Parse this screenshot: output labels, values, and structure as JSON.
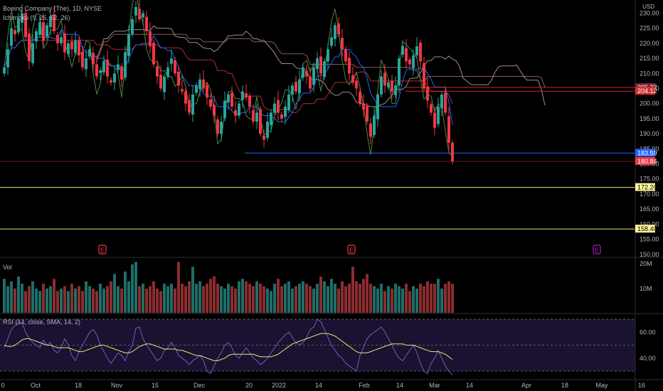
{
  "header": {
    "symbol": "Boeing Company (The), 1D, NYSE",
    "indicator": "Ichimoku (9, 26, 52, 26)",
    "currency": "USD"
  },
  "volume_pane": {
    "label": "Vol",
    "ticks": [
      "20M",
      "10M"
    ]
  },
  "rsi_pane": {
    "label": "RSI (14, close, SMA, 14, 2)",
    "ticks": [
      "60.00",
      "40.00"
    ]
  },
  "colors": {
    "up": "#26a69a",
    "down": "#f23645",
    "volume_up": "#1f6e68",
    "volume_down": "#8c2d30",
    "blue_line": "#2962ff",
    "yellow_line": "#e8e67a",
    "kumo_line": "#9e8e8e",
    "earnings": "#f23645",
    "earnings_future": "#9c27b0"
  },
  "earnings_markers": [
    {
      "label": "E",
      "date": "2021-10-27"
    },
    {
      "label": "E",
      "date": "2022-01-26"
    },
    {
      "label": "E",
      "date": "2022-04-27"
    }
  ],
  "chart_data": [
    {
      "type": "candlestick",
      "title": "Boeing Company (The), 1D, NYSE",
      "y_ticks": [
        150,
        155,
        160,
        165,
        170,
        175,
        180,
        185,
        190,
        195,
        200,
        205,
        210,
        215,
        220,
        225,
        230
      ],
      "ylim": [
        149,
        232
      ],
      "x_ticks": [
        "0",
        "Oct",
        "18",
        "Nov",
        "15",
        "Dec",
        "20",
        "2022",
        "14",
        "Feb",
        "14",
        "Mar",
        "14",
        "Apr",
        "18",
        "May",
        "16"
      ],
      "grid": false,
      "price_labels": [
        {
          "value": "205.37",
          "style": "ichimoku"
        },
        {
          "value": "204.12",
          "style": "red"
        },
        {
          "value": "183.59",
          "style": "blue"
        },
        {
          "value": "180.84",
          "style": "last"
        },
        {
          "value": "172.20",
          "style": "yellow"
        },
        {
          "value": "158.40",
          "style": "yellow"
        }
      ],
      "horizontal_lines": [
        {
          "value": 183.59,
          "color": "blue",
          "start_bar": 68
        },
        {
          "value": 180.84,
          "color": "dark-red",
          "start_bar": 0
        },
        {
          "value": 205.37,
          "color": "red",
          "start_bar": 113
        },
        {
          "value": 204.12,
          "color": "red",
          "start_bar": 113
        },
        {
          "value": 172.2,
          "color": "yellow",
          "start_bar": 0
        },
        {
          "value": 158.4,
          "color": "yellow",
          "start_bar": 0
        }
      ],
      "close": [
        212,
        218,
        225,
        223,
        228,
        230,
        222,
        214,
        220,
        224,
        227,
        221,
        226,
        229,
        224,
        220,
        222,
        217,
        220,
        218,
        221,
        216,
        212,
        215,
        218,
        213,
        209,
        211,
        214,
        209,
        207,
        210,
        213,
        208,
        217,
        223,
        228,
        232,
        228,
        230,
        224,
        219,
        213,
        209,
        205,
        209,
        212,
        215,
        210,
        206,
        204,
        200,
        197,
        203,
        206,
        208,
        205,
        202,
        199,
        196,
        190,
        194,
        201,
        203,
        199,
        196,
        200,
        204,
        202,
        199,
        194,
        197,
        190,
        188,
        194,
        197,
        200,
        197,
        195,
        199,
        203,
        206,
        204,
        208,
        212,
        209,
        205,
        212,
        215,
        210,
        214,
        218,
        222,
        226,
        223,
        218,
        214,
        210,
        207,
        205,
        200,
        198,
        194,
        189,
        196,
        203,
        209,
        206,
        207,
        204,
        206,
        215,
        219,
        214,
        213,
        216,
        219,
        214,
        205,
        201,
        197,
        192,
        199,
        203,
        197,
        187,
        180.84
      ],
      "volume": [
        14,
        11,
        13,
        10,
        15,
        12,
        9,
        11,
        13,
        10,
        9,
        12,
        10,
        11,
        14,
        9,
        10,
        11,
        9,
        12,
        10,
        11,
        9,
        13,
        11,
        10,
        9,
        12,
        10,
        11,
        13,
        16,
        11,
        10,
        17,
        13,
        20,
        21,
        11,
        12,
        10,
        11,
        13,
        10,
        9,
        12,
        11,
        12,
        10,
        21,
        12,
        11,
        13,
        19,
        12,
        13,
        11,
        12,
        14,
        15,
        12,
        11,
        10,
        12,
        11,
        10,
        13,
        14,
        13,
        12,
        11,
        13,
        12,
        11,
        10,
        9,
        12,
        14,
        11,
        12,
        13,
        10,
        11,
        12,
        13,
        12,
        11,
        10,
        12,
        15,
        13,
        11,
        14,
        12,
        10,
        13,
        11,
        12,
        19,
        13,
        12,
        14,
        16,
        12,
        11,
        10,
        12,
        9,
        11,
        10,
        12,
        11,
        10,
        12,
        9,
        11,
        10,
        12,
        11,
        13,
        12,
        12,
        14,
        10,
        12,
        13,
        12
      ],
      "rsi": [
        48,
        55,
        62,
        65,
        68,
        67,
        60,
        55,
        52,
        50,
        48,
        54,
        50,
        52,
        46,
        44,
        48,
        55,
        50,
        42,
        38,
        45,
        50,
        55,
        60,
        62,
        58,
        50,
        45,
        40,
        36,
        40,
        44,
        42,
        38,
        45,
        50,
        63,
        64,
        55,
        50,
        46,
        42,
        38,
        40,
        46,
        48,
        52,
        48,
        42,
        40,
        38,
        35,
        38,
        40,
        42,
        38,
        30,
        28,
        34,
        40,
        44,
        50,
        52,
        48,
        42,
        40,
        44,
        48,
        44,
        40,
        38,
        35,
        37,
        40,
        44,
        48,
        52,
        55,
        58,
        60,
        56,
        52,
        50,
        52,
        56,
        62,
        64,
        70,
        68,
        62,
        56,
        50,
        46,
        42,
        40,
        36,
        34,
        32,
        30,
        42,
        48,
        55,
        58,
        60,
        62,
        64,
        60,
        55,
        50,
        44,
        40,
        38,
        42,
        46,
        50,
        44,
        36,
        30,
        28,
        36,
        40,
        46,
        40,
        34,
        30,
        27
      ],
      "rsi_sma": [
        50,
        49,
        49,
        50,
        52,
        54,
        55,
        55,
        54,
        53,
        52,
        51,
        50,
        50,
        49,
        48,
        48,
        48,
        48,
        47,
        46,
        45,
        45,
        46,
        47,
        48,
        49,
        50,
        50,
        49,
        48,
        47,
        46,
        45,
        44,
        44,
        45,
        47,
        49,
        50,
        51,
        51,
        50,
        49,
        48,
        47,
        47,
        47,
        47,
        46,
        46,
        45,
        44,
        43,
        42,
        42,
        41,
        40,
        39,
        38,
        38,
        39,
        40,
        42,
        43,
        43,
        43,
        43,
        43,
        43,
        43,
        42,
        41,
        41,
        41,
        41,
        42,
        43,
        45,
        47,
        49,
        51,
        52,
        53,
        54,
        55,
        56,
        57,
        58,
        59,
        59,
        59,
        58,
        57,
        55,
        53,
        51,
        49,
        47,
        45,
        44,
        44,
        44,
        45,
        46,
        47,
        48,
        49,
        50,
        51,
        51,
        51,
        51,
        50,
        50,
        50,
        49,
        48,
        47,
        46,
        45,
        45,
        45,
        44,
        43,
        41,
        39
      ]
    }
  ]
}
